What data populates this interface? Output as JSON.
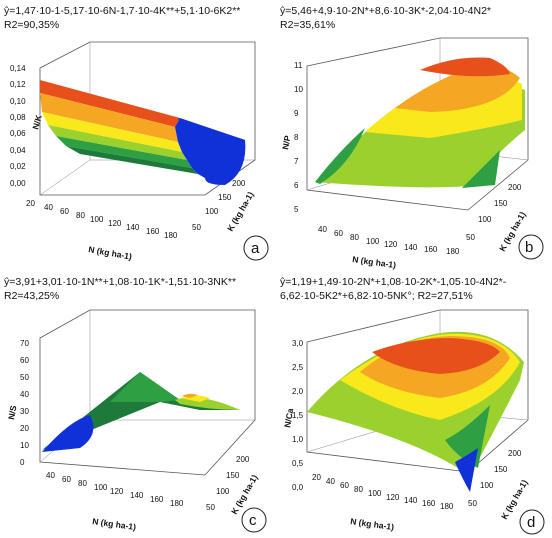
{
  "chart_data": [
    {
      "type": "surface3d",
      "panel": "a",
      "equation": "ŷ=1,47·10-1-5,17·10-6N-1,7·10-4K**+5,1·10-6K2**",
      "r2": "R2=90,35%",
      "zlabel": "N/K",
      "xlabel": "N (kg ha-1)",
      "ylabel": "K (kg ha-1)",
      "zticks": [
        "0,00",
        "0,02",
        "0,04",
        "0,06",
        "0,08",
        "0,10",
        "0,12",
        "0,14"
      ],
      "xticks": [
        "20",
        "40",
        "60",
        "80",
        "100",
        "120",
        "140",
        "160",
        "180"
      ],
      "yticks": [
        "50",
        "100",
        "150",
        "200"
      ],
      "zlim": [
        0,
        0.14
      ],
      "xlim": [
        20,
        180
      ],
      "ylim": [
        0,
        200
      ]
    },
    {
      "type": "surface3d",
      "panel": "b",
      "equation": "ŷ=5,46+4,9·10-2N*+8,6·10-3K*-2,04·10-4N2*",
      "r2": "R2=35,61%",
      "zlabel": "N/P",
      "xlabel": "N (kg ha-1)",
      "ylabel": "K (kg ha-1)",
      "zticks": [
        "5",
        "6",
        "7",
        "8",
        "9",
        "10",
        "11"
      ],
      "xticks": [
        "40",
        "60",
        "80",
        "100",
        "120",
        "140",
        "160",
        "180"
      ],
      "yticks": [
        "50",
        "100",
        "150",
        "200"
      ],
      "zlim": [
        5,
        11
      ],
      "xlim": [
        20,
        180
      ],
      "ylim": [
        0,
        200
      ]
    },
    {
      "type": "surface3d",
      "panel": "c",
      "equation": "ŷ=3,91+3,01·10-1N**+1,08·10-1K*-1,51·10-3NK**",
      "r2": "R2=43,25%",
      "zlabel": "N/S",
      "xlabel": "N (kg ha-1)",
      "ylabel": "K (kg ha-1)",
      "zticks": [
        "0",
        "10",
        "20",
        "30",
        "40",
        "50",
        "60",
        "70"
      ],
      "xticks": [
        "40",
        "60",
        "80",
        "100",
        "120",
        "140",
        "160",
        "180"
      ],
      "yticks": [
        "50",
        "100",
        "150",
        "200"
      ],
      "zlim": [
        0,
        70
      ],
      "xlim": [
        20,
        180
      ],
      "ylim": [
        0,
        200
      ]
    },
    {
      "type": "surface3d",
      "panel": "d",
      "equation": "ŷ=1,19+1,49·10-2N*+1,08·10-2K*-1,05·10-4N2*-",
      "equation2": "6,62·10-5K2*+6,82·10-5NK°; R2=27,51%",
      "zlabel": "N/Ca",
      "xlabel": "N (kg ha-1)",
      "ylabel": "K (kg ha-1)",
      "zticks": [
        "0,0",
        "0,5",
        "1,0",
        "1,5",
        "2,0",
        "2,5",
        "3,0"
      ],
      "xticks": [
        "20",
        "40",
        "60",
        "80",
        "100",
        "120",
        "140",
        "160",
        "180"
      ],
      "yticks": [
        "50",
        "100",
        "150",
        "200"
      ],
      "zlim": [
        0,
        3
      ],
      "xlim": [
        20,
        180
      ],
      "ylim": [
        0,
        200
      ]
    }
  ],
  "colors": {
    "red": "#e8501b",
    "orange": "#f5a623",
    "yellow": "#f8e81c",
    "lightgreen": "#9bd12e",
    "green": "#2ea043",
    "darkgreen": "#1d7a3a",
    "blue": "#1030d8"
  }
}
